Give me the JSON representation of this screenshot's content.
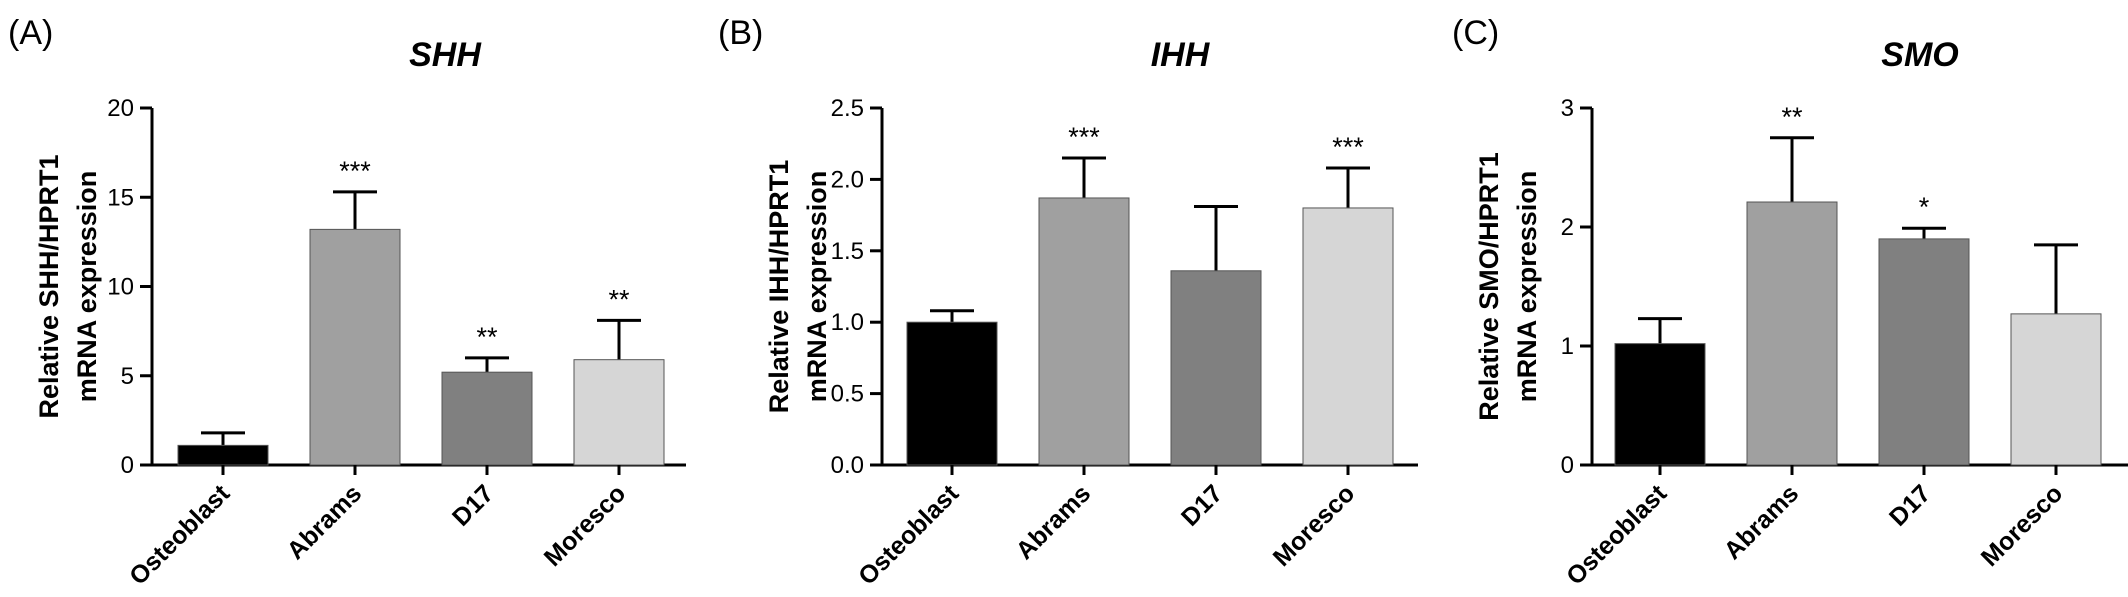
{
  "chart_data": [
    {
      "panel_label": "(A)",
      "type": "bar",
      "title": "SHH",
      "ylabel_lines": [
        "Relative SHH/HPRT1",
        "mRNA expression"
      ],
      "ylim": [
        0,
        20
      ],
      "yticks": [
        "0",
        "5",
        "10",
        "15",
        "20"
      ],
      "categories": [
        "Osteoblast",
        "Abrams",
        "D17",
        "Moresco"
      ],
      "values": [
        1.1,
        13.2,
        5.2,
        5.9
      ],
      "error_upper": [
        0.7,
        2.1,
        0.8,
        2.2
      ],
      "significance": [
        "",
        "***",
        "**",
        "**"
      ],
      "bar_colors": [
        "#000000",
        "#a0a0a0",
        "#808080",
        "#d6d6d6"
      ],
      "grid": false,
      "legend": "none"
    },
    {
      "panel_label": "(B)",
      "type": "bar",
      "title": "IHH",
      "ylabel_lines": [
        "Relative IHH/HPRT1",
        "mRNA expression"
      ],
      "ylim": [
        0,
        2.5
      ],
      "yticks": [
        "0.0",
        "0.5",
        "1.0",
        "1.5",
        "2.0",
        "2.5"
      ],
      "categories": [
        "Osteoblast",
        "Abrams",
        "D17",
        "Moresco"
      ],
      "values": [
        1.0,
        1.87,
        1.36,
        1.8
      ],
      "error_upper": [
        0.08,
        0.28,
        0.45,
        0.28
      ],
      "significance": [
        "",
        "***",
        "",
        "***"
      ],
      "bar_colors": [
        "#000000",
        "#a0a0a0",
        "#808080",
        "#d6d6d6"
      ],
      "grid": false,
      "legend": "none"
    },
    {
      "panel_label": "(C)",
      "type": "bar",
      "title": "SMO",
      "ylabel_lines": [
        "Relative SMO/HPRT1",
        "mRNA expression"
      ],
      "ylim": [
        0,
        3
      ],
      "yticks": [
        "0",
        "1",
        "2",
        "3"
      ],
      "categories": [
        "Osteoblast",
        "Abrams",
        "D17",
        "Moresco"
      ],
      "values": [
        1.02,
        2.21,
        1.9,
        1.27
      ],
      "error_upper": [
        0.21,
        0.54,
        0.09,
        0.58
      ],
      "significance": [
        "",
        "**",
        "*",
        ""
      ],
      "bar_colors": [
        "#000000",
        "#a0a0a0",
        "#808080",
        "#d6d6d6"
      ],
      "grid": false,
      "legend": "none"
    }
  ]
}
